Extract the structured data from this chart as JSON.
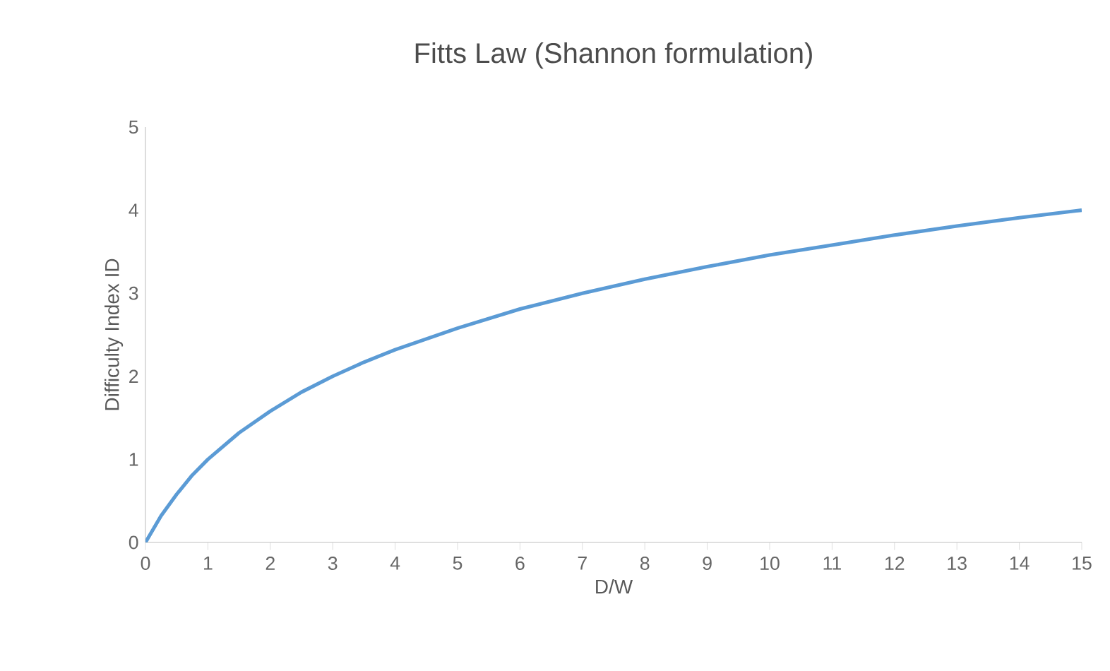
{
  "chart_data": {
    "type": "line",
    "title": "Fitts Law (Shannon formulation)",
    "xlabel": "D/W",
    "ylabel": "Difficulty Index ID",
    "x": [
      0,
      0.25,
      0.5,
      0.75,
      1,
      1.5,
      2,
      2.5,
      3,
      3.5,
      4,
      5,
      6,
      7,
      8,
      9,
      10,
      11,
      12,
      13,
      14,
      15
    ],
    "series": [
      {
        "color": "#5b9bd5",
        "values": [
          0,
          0.32,
          0.58,
          0.81,
          1.0,
          1.32,
          1.58,
          1.81,
          2.0,
          2.17,
          2.32,
          2.58,
          2.81,
          3.0,
          3.17,
          3.32,
          3.46,
          3.58,
          3.7,
          3.81,
          3.91,
          4.0
        ]
      }
    ],
    "xlim": [
      0,
      15
    ],
    "ylim": [
      0,
      5
    ],
    "xticks": [
      0,
      1,
      2,
      3,
      4,
      5,
      6,
      7,
      8,
      9,
      10,
      11,
      12,
      13,
      14,
      15
    ],
    "yticks": [
      0,
      1,
      2,
      3,
      4,
      5
    ],
    "grid": false,
    "legend": false,
    "marker": "none",
    "line_style": "solid"
  }
}
